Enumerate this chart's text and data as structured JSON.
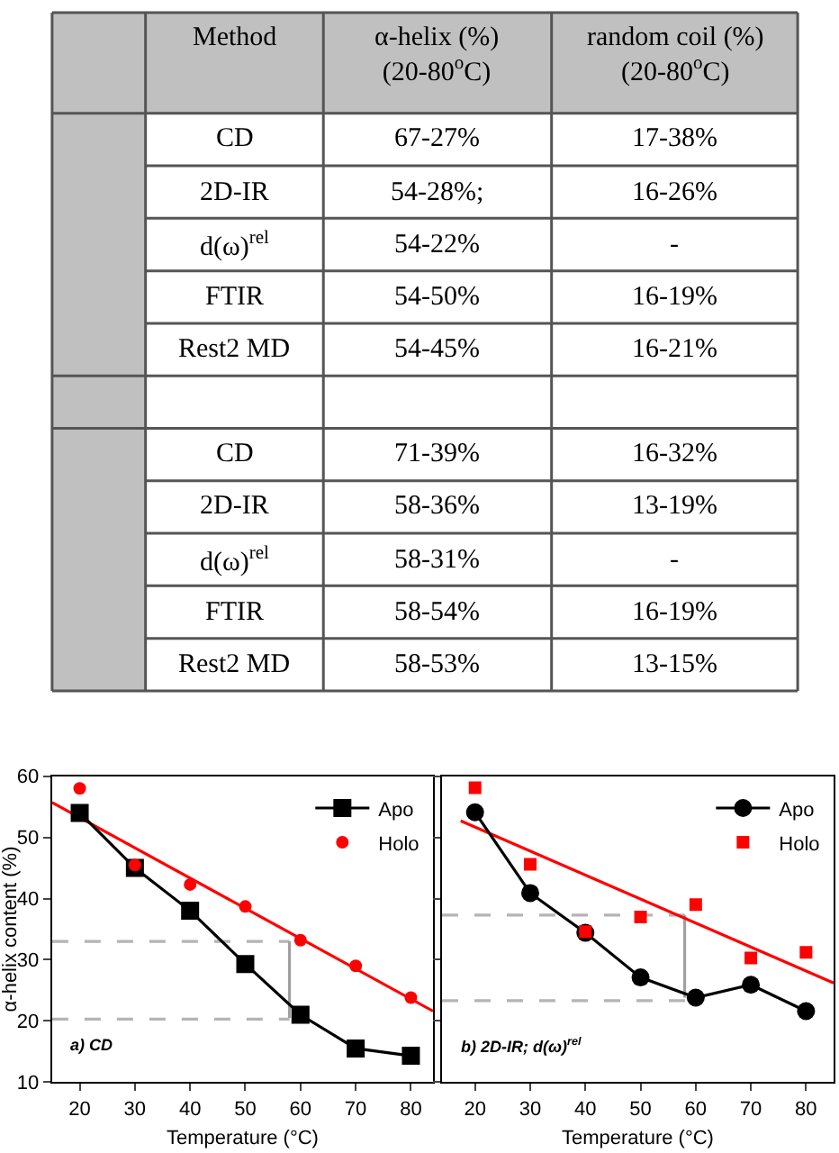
{
  "chart_data": [
    {
      "type": "other",
      "annotations": [
        "Method",
        "α-helix (%)\n(20-80$^{o}$C)",
        "random coil (%)\n(20-80$^{o}$C)",
        "CD",
        "67-27%",
        "17-38%",
        "2D-IR",
        "54-28%;",
        "16-26%",
        "d(ω)$^{rel}$",
        "54-22%",
        "-",
        "FTIR",
        "54-50%",
        "16-19%",
        "Rest2 MD",
        "54-45%",
        "16-21%",
        null,
        null,
        null,
        "CD",
        "71-39%",
        "16-32%",
        "2D-IR",
        "58-36%",
        "13-19%",
        "d(ω)$^{rel}$",
        "58-31%",
        "-",
        "FTIR",
        "58-54%",
        "16-19%",
        "Rest2 MD",
        "58-53%",
        "13-15%"
      ]
    },
    {
      "type": "line",
      "xlabel": "Temperature (°C)",
      "ylabel": "α-helix content (%)",
      "xlim": [
        15,
        84
      ],
      "ylim": [
        10,
        60
      ],
      "xticks": [
        20,
        30,
        40,
        50,
        60,
        70,
        80
      ],
      "yticks": [
        10,
        20,
        30,
        40,
        50,
        60
      ],
      "grid": false,
      "legend": "top right",
      "annotations": [
        "a) CD"
      ],
      "series": [
        {
          "type": "line",
          "color": "#b4b4b4",
          "line_style": "dashed",
          "marker": "none",
          "x": [
            15,
            58
          ],
          "values": [
            33,
            33
          ]
        },
        {
          "type": "line",
          "color": "#b4b4b4",
          "line_style": "dashed",
          "marker": "none",
          "x": [
            15,
            58
          ],
          "values": [
            20.3,
            20.3
          ]
        },
        {
          "type": "line",
          "color": "#a0a0a0",
          "marker": "none",
          "x": [
            58,
            58
          ],
          "values": [
            20.5,
            33
          ]
        },
        {
          "type": "line",
          "color": "#ff0000",
          "marker": "none",
          "x": [
            15,
            84
          ],
          "values": [
            55.7,
            21.6
          ]
        },
        {
          "name": "Apo",
          "type": "line",
          "color": "#000000",
          "marker": "square",
          "x": [
            20,
            30,
            40,
            50,
            60,
            70,
            80
          ],
          "values": [
            54,
            45,
            38,
            29.3,
            21,
            15.5,
            14.3
          ]
        },
        {
          "name": "Holo",
          "type": "scatter",
          "color": "#ff0000",
          "marker": "circle",
          "x": [
            20,
            30,
            40,
            50,
            60,
            70,
            80
          ],
          "values": [
            58,
            45.5,
            42.3,
            38.7,
            33.2,
            29,
            23.8
          ]
        }
      ]
    },
    {
      "type": "line",
      "xlabel": "Temperature (°C)",
      "xlim": [
        14,
        85
      ],
      "ylim": [
        10,
        60
      ],
      "xticks": [
        20,
        30,
        40,
        50,
        60,
        70,
        80
      ],
      "yticks": [
        10,
        20,
        30,
        40,
        50,
        60
      ],
      "tick_labels": "x",
      "grid": false,
      "legend": "top right",
      "annotations": [
        "b) 2D-IR; d(ω)$^{rel}$"
      ],
      "series": [
        {
          "type": "line",
          "color": "#b4b4b4",
          "line_style": "dashed",
          "marker": "none",
          "x": [
            14,
            58
          ],
          "values": [
            37.3,
            37.3
          ]
        },
        {
          "type": "line",
          "color": "#b4b4b4",
          "line_style": "dashed",
          "marker": "none",
          "x": [
            14,
            60
          ],
          "values": [
            23.3,
            23.3
          ]
        },
        {
          "type": "line",
          "color": "#a0a0a0",
          "marker": "none",
          "x": [
            58,
            58
          ],
          "values": [
            23.8,
            37.3
          ]
        },
        {
          "type": "line",
          "color": "#ff0000",
          "marker": "none",
          "x": [
            17.4,
            85
          ],
          "values": [
            52.7,
            26.2
          ]
        },
        {
          "name": "Apo",
          "type": "line",
          "color": "#000000",
          "marker": "circle",
          "x": [
            20,
            30,
            40,
            50,
            60,
            70,
            80
          ],
          "values": [
            54.1,
            40.9,
            34.4,
            27.1,
            23.8,
            25.9,
            21.6
          ]
        },
        {
          "name": "Holo",
          "type": "scatter",
          "color": "#ff0000",
          "marker": "square",
          "x": [
            20,
            30,
            40,
            50,
            60,
            70,
            80
          ],
          "values": [
            58.1,
            45.6,
            34.6,
            37,
            39,
            30.3,
            31.2
          ]
        }
      ]
    }
  ]
}
